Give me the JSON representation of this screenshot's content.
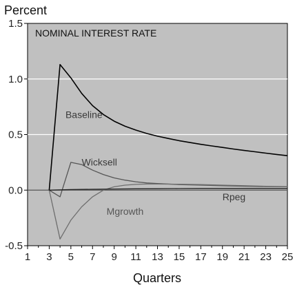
{
  "chart_data": {
    "type": "line",
    "title": "NOMINAL INTEREST RATE",
    "ylabel": "Percent",
    "xlabel": "Quarters",
    "xlim": [
      1,
      25
    ],
    "ylim": [
      -0.5,
      1.5
    ],
    "x_ticks": [
      1,
      3,
      5,
      7,
      9,
      11,
      13,
      15,
      17,
      19,
      21,
      23,
      25
    ],
    "y_ticks": [
      "1.5",
      "1.0",
      "0.5",
      "0.0",
      "-0.5"
    ],
    "y_tick_values": [
      1.5,
      1.0,
      0.5,
      0.0,
      -0.5
    ],
    "grid": true,
    "colors": {
      "plot_bg": "#c0c0c0",
      "grid": "#ffffff",
      "zero_line": "#555555",
      "Baseline": "#000000",
      "Wicksell": "#555555",
      "Mgrowth": "#6e6e6e",
      "Rpeg": "#222222"
    },
    "series": [
      {
        "name": "Baseline",
        "x": [
          3,
          4,
          5,
          6,
          7,
          8,
          9,
          10,
          11,
          12,
          13,
          14,
          15,
          16,
          17,
          18,
          19,
          20,
          21,
          22,
          23,
          24,
          25
        ],
        "values": [
          0.0,
          1.13,
          1.01,
          0.87,
          0.76,
          0.68,
          0.62,
          0.575,
          0.54,
          0.51,
          0.485,
          0.465,
          0.445,
          0.428,
          0.412,
          0.398,
          0.384,
          0.37,
          0.357,
          0.345,
          0.333,
          0.321,
          0.31
        ]
      },
      {
        "name": "Wicksell",
        "x": [
          3,
          4,
          5,
          6,
          7,
          8,
          9,
          10,
          11,
          12,
          13,
          14,
          15,
          17,
          19,
          21,
          23,
          25
        ],
        "values": [
          0.0,
          -0.06,
          0.25,
          0.23,
          0.18,
          0.14,
          0.11,
          0.09,
          0.075,
          0.065,
          0.06,
          0.055,
          0.05,
          0.045,
          0.04,
          0.035,
          0.032,
          0.03
        ]
      },
      {
        "name": "Mgrowth",
        "x": [
          3,
          4,
          5,
          6,
          7,
          8,
          9,
          10,
          11,
          12,
          13,
          15,
          17,
          19,
          21,
          23,
          25
        ],
        "values": [
          0.0,
          -0.44,
          -0.27,
          -0.15,
          -0.06,
          0.0,
          0.03,
          0.045,
          0.052,
          0.055,
          0.055,
          0.053,
          0.05,
          0.045,
          0.04,
          0.035,
          0.032
        ]
      },
      {
        "name": "Rpeg",
        "x": [
          3,
          5,
          7,
          9,
          11,
          13,
          15,
          17,
          19,
          21,
          23,
          25
        ],
        "values": [
          0.0,
          0.005,
          0.008,
          0.01,
          0.012,
          0.013,
          0.014,
          0.015,
          0.015,
          0.015,
          0.015,
          0.015
        ]
      }
    ],
    "annotations": [
      {
        "text": "Baseline",
        "x": 4.5,
        "y": 0.65,
        "series": "Baseline"
      },
      {
        "text": "Wicksell",
        "x": 6.0,
        "y": 0.22,
        "series": "Wicksell"
      },
      {
        "text": "Rpeg",
        "x": 19.0,
        "y": -0.09,
        "series": "Rpeg"
      },
      {
        "text": "Mgrowth",
        "x": 8.3,
        "y": -0.22,
        "series": "Mgrowth"
      }
    ]
  }
}
